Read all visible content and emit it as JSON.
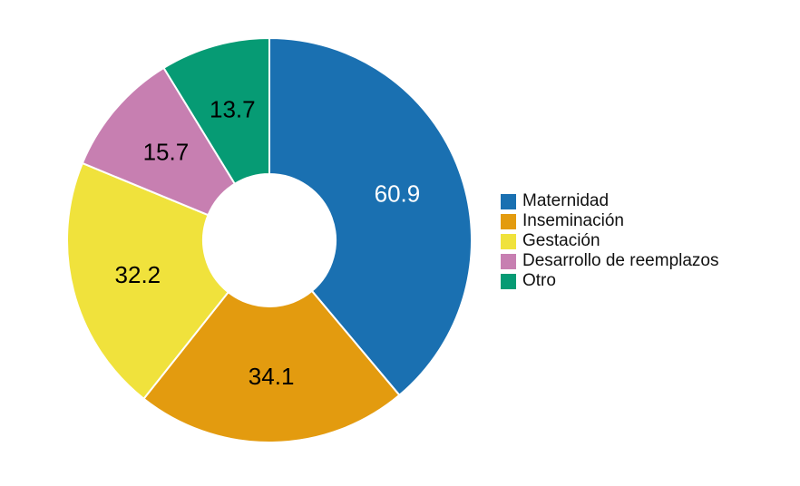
{
  "chart_data": {
    "type": "pie",
    "subtype": "donut",
    "title": "",
    "start_angle_deg": 0,
    "direction": "clockwise",
    "total": 156.6,
    "inner_radius_ratio": 0.33,
    "legend_position": "right",
    "background_color": "#FFFFFF",
    "slice_border_color": "#FFFFFF",
    "series": [
      {
        "label": "Maternidad",
        "value": 60.9,
        "color": "#1A70B1",
        "value_label_color": "#FFFFFF"
      },
      {
        "label": "Inseminación",
        "value": 34.1,
        "color": "#E39B0F",
        "value_label_color": "#000000"
      },
      {
        "label": "Gestación",
        "value": 32.2,
        "color": "#F0E23C",
        "value_label_color": "#000000"
      },
      {
        "label": "Desarrollo de reemplazos",
        "value": 15.7,
        "color": "#C77FB1",
        "value_label_color": "#000000"
      },
      {
        "label": "Otro",
        "value": 13.7,
        "color": "#069B74",
        "value_label_color": "#000000"
      }
    ]
  }
}
